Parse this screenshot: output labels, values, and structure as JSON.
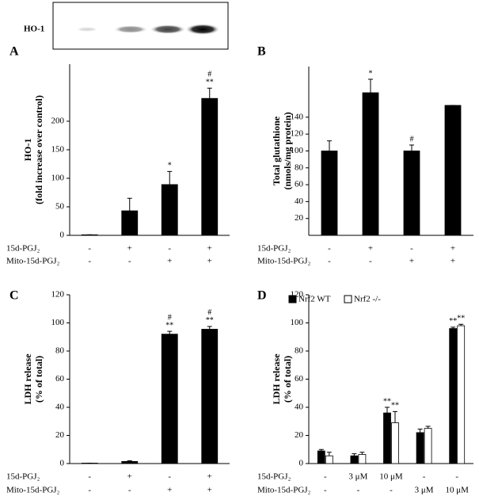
{
  "blot": {
    "label": "HO-1"
  },
  "chart_data": [
    {
      "type": "bar",
      "panel": "A",
      "ylabel": [
        "HO-1",
        "(fold increase over control)"
      ],
      "ylim": [
        0,
        300
      ],
      "yticks": [
        0,
        50,
        100,
        150,
        200
      ],
      "series": [
        {
          "color": "#000000",
          "values": [
            1,
            43,
            89,
            240
          ],
          "errors": [
            0,
            22,
            23,
            18
          ],
          "annotations": [
            [],
            [],
            [
              "*"
            ],
            [
              "#",
              "**"
            ]
          ]
        }
      ],
      "rows": [
        {
          "label": "15d-PGJ₂",
          "values": [
            "-",
            "+",
            "-",
            "+"
          ]
        },
        {
          "label": "Mito-15d-PGJ₂",
          "values": [
            "-",
            "-",
            "+",
            "+"
          ]
        }
      ]
    },
    {
      "type": "bar",
      "panel": "B",
      "ylabel": [
        "Total glutathione",
        "(nmols/mg protein)"
      ],
      "ylim": [
        0,
        200
      ],
      "yticks": [
        20,
        40,
        60,
        80,
        100,
        120,
        140
      ],
      "series": [
        {
          "color": "#000000",
          "values": [
            100,
            169,
            100,
            154
          ],
          "errors": [
            12,
            16,
            7,
            0
          ],
          "annotations": [
            [],
            [
              "*"
            ],
            [
              "#"
            ],
            []
          ]
        }
      ],
      "rows": [
        {
          "label": "15d-PGJ₂",
          "values": [
            "-",
            "+",
            "-",
            "+"
          ]
        },
        {
          "label": "Mito-15d-PGJ₂",
          "values": [
            "-",
            "-",
            "+",
            "+"
          ]
        }
      ]
    },
    {
      "type": "bar",
      "panel": "C",
      "ylabel": [
        "LDH release",
        "(% of total)"
      ],
      "ylim": [
        0,
        120
      ],
      "yticks": [
        0,
        20,
        40,
        60,
        80,
        100,
        120
      ],
      "series": [
        {
          "color": "#000000",
          "values": [
            0.3,
            1.5,
            92,
            95.5
          ],
          "errors": [
            0,
            0.5,
            2,
            2
          ],
          "annotations": [
            [],
            [],
            [
              "#",
              "**"
            ],
            [
              "#",
              "**"
            ]
          ]
        }
      ],
      "rows": [
        {
          "label": "15d-PGJ₂",
          "values": [
            "-",
            "+",
            "-",
            "+"
          ]
        },
        {
          "label": "Mito-15d-PGJ₂",
          "values": [
            "-",
            "-",
            "+",
            "+"
          ]
        }
      ]
    },
    {
      "type": "bar",
      "panel": "D",
      "ylabel": [
        "LDH release",
        "(% of total)"
      ],
      "ylim": [
        0,
        120
      ],
      "yticks": [
        0,
        20,
        40,
        60,
        80,
        100,
        120
      ],
      "series": [
        {
          "name": "Nrf2 WT",
          "color": "#000000",
          "values": [
            9,
            5.5,
            36,
            22,
            96
          ],
          "errors": [
            1,
            1.5,
            4,
            2.5,
            1
          ],
          "annotations": [
            [],
            [],
            [
              "**"
            ],
            [],
            [
              "**"
            ]
          ]
        },
        {
          "name": "Nrf2 -/-",
          "color": "#ffffff",
          "values": [
            5.5,
            6.5,
            29,
            25,
            98
          ],
          "errors": [
            2.5,
            1.5,
            8,
            1.5,
            1
          ],
          "annotations": [
            [],
            [],
            [
              "**"
            ],
            [],
            [
              "**"
            ]
          ]
        }
      ],
      "rows": [
        {
          "label": "15d-PGJ₂",
          "values": [
            "-",
            "3 μM",
            "10 μM",
            "-",
            "-"
          ]
        },
        {
          "label": "Mito-15d-PGJ₂",
          "values": [
            "-",
            "-",
            "-",
            "3 μM",
            "10 μM"
          ]
        }
      ]
    }
  ]
}
